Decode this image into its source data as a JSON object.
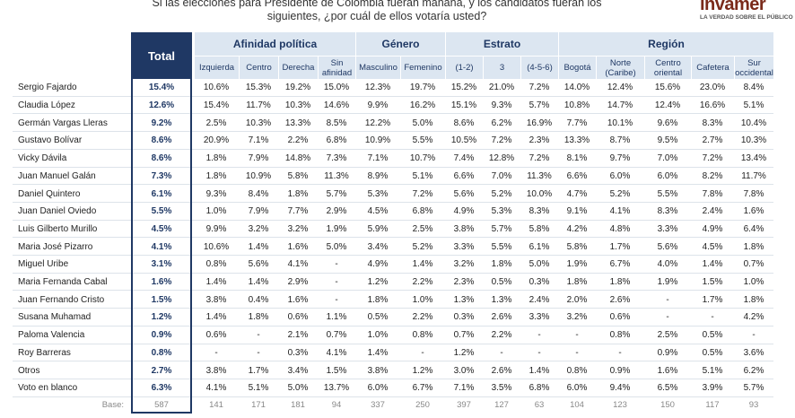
{
  "title": "Si las elecciones para Presidente de Colombia fueran mañana, y los candidatos fueran los siguientes, ¿por cuál de ellos votaría usted?",
  "logo": {
    "name": "invamer",
    "tagline": "LA VERDAD SOBRE EL PÚBLICO"
  },
  "table": {
    "total_header": "Total",
    "groups": [
      {
        "name": "Afinidad política",
        "columns": [
          "Izquierda",
          "Centro",
          "Derecha",
          "Sin afinidad"
        ]
      },
      {
        "name": "Género",
        "columns": [
          "Masculino",
          "Femenino"
        ]
      },
      {
        "name": "Estrato",
        "columns": [
          "(1-2)",
          "3",
          "(4-5-6)"
        ]
      },
      {
        "name": "Región",
        "columns": [
          "Bogotá",
          "Norte (Caribe)",
          "Centro oriental",
          "Cafetera",
          "Sur occidental"
        ]
      }
    ],
    "rows": [
      {
        "label": "Sergio Fajardo",
        "cells": [
          "15.4%",
          "10.6%",
          "15.3%",
          "19.2%",
          "15.0%",
          "12.3%",
          "19.7%",
          "15.2%",
          "21.0%",
          "7.2%",
          "14.0%",
          "12.4%",
          "15.6%",
          "23.0%",
          "8.4%"
        ]
      },
      {
        "label": "Claudia López",
        "cells": [
          "12.6%",
          "15.4%",
          "11.7%",
          "10.3%",
          "14.6%",
          "9.9%",
          "16.2%",
          "15.1%",
          "9.3%",
          "5.7%",
          "10.8%",
          "14.7%",
          "12.4%",
          "16.6%",
          "5.1%"
        ]
      },
      {
        "label": "Germán Vargas Lleras",
        "cells": [
          "9.2%",
          "2.5%",
          "10.3%",
          "13.3%",
          "8.5%",
          "12.2%",
          "5.0%",
          "8.6%",
          "6.2%",
          "16.9%",
          "7.7%",
          "10.1%",
          "9.6%",
          "8.3%",
          "10.4%"
        ]
      },
      {
        "label": "Gustavo Bolívar",
        "cells": [
          "8.6%",
          "20.9%",
          "7.1%",
          "2.2%",
          "6.8%",
          "10.9%",
          "5.5%",
          "10.5%",
          "7.2%",
          "2.3%",
          "13.3%",
          "8.7%",
          "9.5%",
          "2.7%",
          "10.3%"
        ]
      },
      {
        "label": "Vicky Dávila",
        "cells": [
          "8.6%",
          "1.8%",
          "7.9%",
          "14.8%",
          "7.3%",
          "7.1%",
          "10.7%",
          "7.4%",
          "12.8%",
          "7.2%",
          "8.1%",
          "9.7%",
          "7.0%",
          "7.2%",
          "13.4%"
        ]
      },
      {
        "label": "Juan Manuel Galán",
        "cells": [
          "7.3%",
          "1.8%",
          "10.9%",
          "5.8%",
          "11.3%",
          "8.9%",
          "5.1%",
          "6.6%",
          "7.0%",
          "11.3%",
          "6.6%",
          "6.0%",
          "6.0%",
          "8.2%",
          "11.7%"
        ]
      },
      {
        "label": "Daniel Quintero",
        "cells": [
          "6.1%",
          "9.3%",
          "8.4%",
          "1.8%",
          "5.7%",
          "5.3%",
          "7.2%",
          "5.6%",
          "5.2%",
          "10.0%",
          "4.7%",
          "5.2%",
          "5.5%",
          "7.8%",
          "7.8%"
        ]
      },
      {
        "label": "Juan Daniel Oviedo",
        "cells": [
          "5.5%",
          "1.0%",
          "7.9%",
          "7.7%",
          "2.9%",
          "4.5%",
          "6.8%",
          "4.9%",
          "5.3%",
          "8.3%",
          "9.1%",
          "4.1%",
          "8.3%",
          "2.4%",
          "1.6%"
        ]
      },
      {
        "label": "Luis Gilberto Murillo",
        "cells": [
          "4.5%",
          "9.9%",
          "3.2%",
          "3.2%",
          "1.9%",
          "5.9%",
          "2.5%",
          "3.8%",
          "5.7%",
          "5.8%",
          "4.2%",
          "4.8%",
          "3.3%",
          "4.9%",
          "6.4%"
        ]
      },
      {
        "label": "Maria José Pizarro",
        "cells": [
          "4.1%",
          "10.6%",
          "1.4%",
          "1.6%",
          "5.0%",
          "3.4%",
          "5.2%",
          "3.3%",
          "5.5%",
          "6.1%",
          "5.8%",
          "1.7%",
          "5.6%",
          "4.5%",
          "1.8%"
        ]
      },
      {
        "label": "Miguel Uribe",
        "cells": [
          "3.1%",
          "0.8%",
          "5.6%",
          "4.1%",
          "-",
          "4.9%",
          "1.4%",
          "3.2%",
          "1.8%",
          "5.0%",
          "1.9%",
          "6.7%",
          "4.0%",
          "1.4%",
          "0.7%"
        ]
      },
      {
        "label": "Maria Fernanda Cabal",
        "cells": [
          "1.6%",
          "1.4%",
          "1.4%",
          "2.9%",
          "-",
          "1.2%",
          "2.2%",
          "2.3%",
          "0.5%",
          "0.3%",
          "1.8%",
          "1.8%",
          "1.9%",
          "1.5%",
          "1.0%"
        ]
      },
      {
        "label": "Juan Fernando Cristo",
        "cells": [
          "1.5%",
          "3.8%",
          "0.4%",
          "1.6%",
          "-",
          "1.8%",
          "1.0%",
          "1.3%",
          "1.3%",
          "2.4%",
          "2.0%",
          "2.6%",
          "-",
          "1.7%",
          "1.8%"
        ]
      },
      {
        "label": "Susana Muhamad",
        "cells": [
          "1.2%",
          "1.4%",
          "1.8%",
          "0.6%",
          "1.1%",
          "0.5%",
          "2.2%",
          "0.3%",
          "2.6%",
          "3.3%",
          "3.2%",
          "0.6%",
          "-",
          "-",
          "4.2%"
        ]
      },
      {
        "label": "Paloma Valencia",
        "cells": [
          "0.9%",
          "0.6%",
          "-",
          "2.1%",
          "0.7%",
          "1.0%",
          "0.8%",
          "0.7%",
          "2.2%",
          "-",
          "-",
          "0.8%",
          "2.5%",
          "0.5%",
          "-"
        ]
      },
      {
        "label": "Roy Barreras",
        "cells": [
          "0.8%",
          "-",
          "-",
          "0.3%",
          "4.1%",
          "1.4%",
          "-",
          "1.2%",
          "-",
          "-",
          "-",
          "-",
          "0.9%",
          "0.5%",
          "3.6%"
        ]
      },
      {
        "label": "Otros",
        "cells": [
          "2.7%",
          "3.8%",
          "1.7%",
          "3.4%",
          "1.5%",
          "3.8%",
          "1.2%",
          "3.0%",
          "2.6%",
          "1.4%",
          "0.8%",
          "0.9%",
          "1.6%",
          "5.1%",
          "6.2%"
        ]
      },
      {
        "label": "Voto en blanco",
        "cells": [
          "6.3%",
          "4.1%",
          "5.1%",
          "5.0%",
          "13.7%",
          "6.0%",
          "6.7%",
          "7.1%",
          "3.5%",
          "6.8%",
          "6.0%",
          "9.4%",
          "6.5%",
          "3.9%",
          "5.7%"
        ]
      }
    ],
    "base": {
      "label": "Base:",
      "cells": [
        "587",
        "141",
        "171",
        "181",
        "94",
        "337",
        "250",
        "397",
        "127",
        "63",
        "104",
        "123",
        "150",
        "117",
        "93"
      ]
    }
  }
}
